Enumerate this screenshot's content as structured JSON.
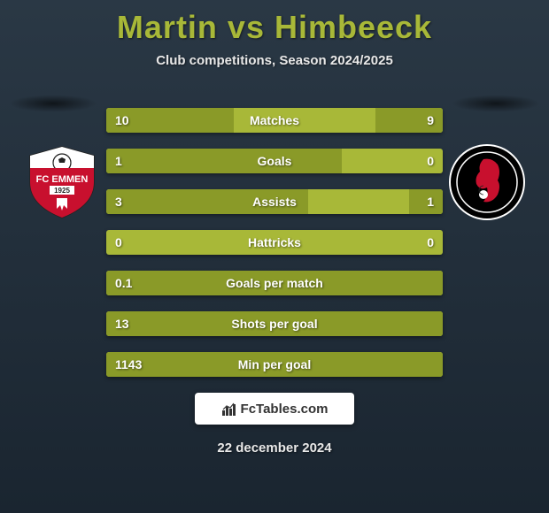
{
  "title": "Martin vs Himbeeck",
  "subtitle": "Club competitions, Season 2024/2025",
  "date": "22 december 2024",
  "footer_brand": "FcTables.com",
  "colors": {
    "background_top": "#2a3845",
    "background_bottom": "#1a2530",
    "accent": "#a8b838",
    "bar_fill": "#8a9a28",
    "text_light": "#e8e8e8",
    "white": "#ffffff"
  },
  "fontsize": {
    "title": 36,
    "subtitle": 15,
    "bar_label": 14,
    "date": 15
  },
  "left_logo": {
    "name": "fc-emmen-logo",
    "bg": "#ffffff",
    "accent": "#c8102e",
    "text": "FC EMMEN",
    "year": "1925"
  },
  "right_logo": {
    "name": "helmond-sport-logo",
    "bg": "#000000",
    "accent": "#c8102e",
    "ring": "#ffffff"
  },
  "stats": [
    {
      "label": "Matches",
      "left_val": "10",
      "right_val": "9",
      "left_pct": 38,
      "right_pct": 20
    },
    {
      "label": "Goals",
      "left_val": "1",
      "right_val": "0",
      "left_pct": 70,
      "right_pct": 0
    },
    {
      "label": "Assists",
      "left_val": "3",
      "right_val": "1",
      "left_pct": 60,
      "right_pct": 10
    },
    {
      "label": "Hattricks",
      "left_val": "0",
      "right_val": "0",
      "left_pct": 0,
      "right_pct": 0
    },
    {
      "label": "Goals per match",
      "left_val": "0.1",
      "right_val": "",
      "left_pct": 100,
      "right_pct": 0
    },
    {
      "label": "Shots per goal",
      "left_val": "13",
      "right_val": "",
      "left_pct": 100,
      "right_pct": 0
    },
    {
      "label": "Min per goal",
      "left_val": "1143",
      "right_val": "",
      "left_pct": 100,
      "right_pct": 0
    }
  ]
}
